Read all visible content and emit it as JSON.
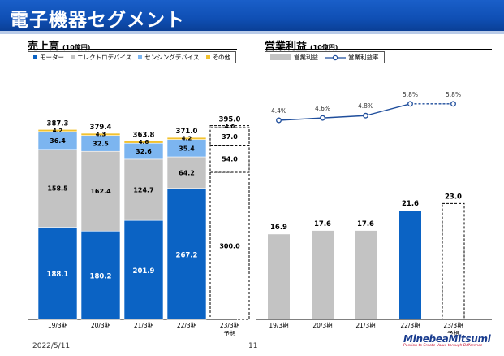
{
  "page": {
    "title": "電子機器セグメント",
    "date": "2022/5/11",
    "page_number": "11",
    "logo_name": "MinebeaMitsumi",
    "logo_tagline": "Passion to Create Value through Difference"
  },
  "chart_data": [
    {
      "type": "bar",
      "title": "売上高",
      "unit": "(10億円)",
      "stacked": true,
      "categories": [
        "19/3期",
        "20/3期",
        "21/3期",
        "22/3期",
        "23/3期"
      ],
      "category_notes": [
        "",
        "",
        "",
        "",
        "予想"
      ],
      "series": [
        {
          "name": "モーター",
          "color": "#0b63c4",
          "values": [
            188.1,
            180.2,
            201.9,
            267.2,
            300.0
          ]
        },
        {
          "name": "エレクトロデバイス",
          "color": "#c3c3c3",
          "values": [
            158.5,
            162.4,
            124.7,
            64.2,
            54.0
          ]
        },
        {
          "name": "センシングデバイス",
          "color": "#7cb5f0",
          "values": [
            36.4,
            32.5,
            32.6,
            35.4,
            37.0
          ]
        },
        {
          "name": "その他",
          "color": "#f2c230",
          "values": [
            4.2,
            4.3,
            4.6,
            4.2,
            4.0
          ]
        }
      ],
      "totals": [
        387.3,
        379.4,
        363.8,
        371.0,
        395.0
      ],
      "forecast_index": 4,
      "ylim": [
        0,
        400
      ]
    },
    {
      "type": "bar+line",
      "title": "営業利益",
      "unit": "(10億円)",
      "categories": [
        "19/3期",
        "20/3期",
        "21/3期",
        "22/3期",
        "23/3期"
      ],
      "category_notes": [
        "",
        "",
        "",
        "",
        "予想"
      ],
      "bar_series": {
        "name": "営業利益",
        "values": [
          16.9,
          17.6,
          17.6,
          21.6,
          23.0
        ],
        "colors": [
          "#c3c3c3",
          "#c3c3c3",
          "#c3c3c3",
          "#0b63c4",
          "#ffffff"
        ]
      },
      "line_series": {
        "name": "営業利益率",
        "values": [
          4.4,
          4.6,
          4.8,
          5.8,
          5.8
        ],
        "labels": [
          "4.4%",
          "4.6%",
          "4.8%",
          "5.8%",
          "5.8%"
        ],
        "color": "#1f4e9c"
      },
      "forecast_index": 4,
      "ylim": [
        0,
        25
      ]
    }
  ]
}
